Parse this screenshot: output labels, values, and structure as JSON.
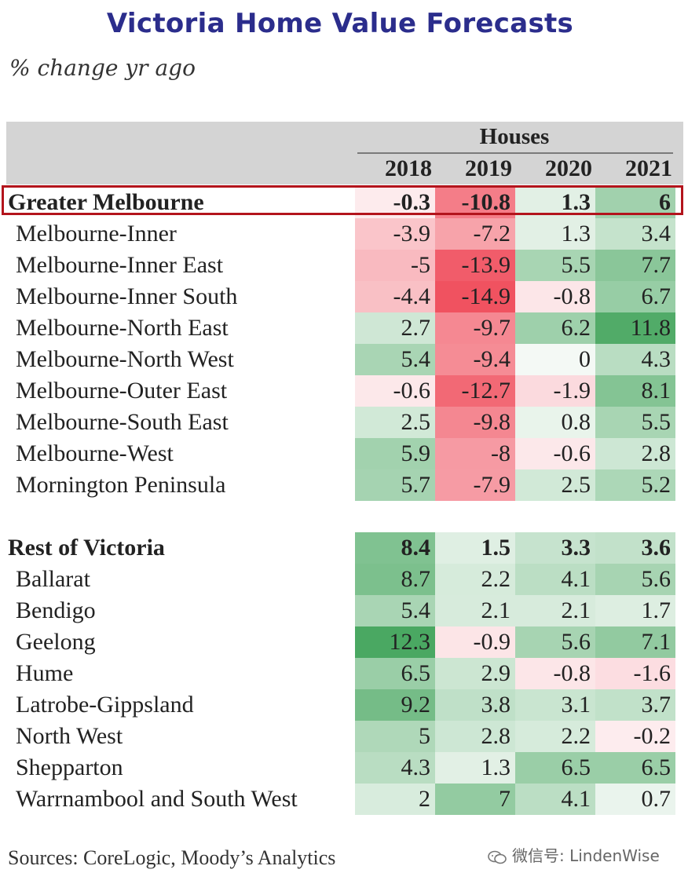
{
  "title": "Victoria Home Value Forecasts",
  "subtitle": "% change yr ago",
  "source": "Sources: CoreLogic, Moody’s Analytics",
  "watermark": "微信号: LindenWise",
  "colors": {
    "title": "#2b2d8c",
    "highlight_border": "#b3141c",
    "positive": "#3aa35c",
    "negative": "#ee3344"
  },
  "chart_data": {
    "type": "table",
    "title": "Victoria Home Value Forecasts",
    "subtitle": "% change yr ago",
    "column_group": "Houses",
    "columns": [
      "2018",
      "2019",
      "2020",
      "2021"
    ],
    "groups": [
      {
        "name": "Greater Melbourne",
        "values": [
          "-0.3",
          "-10.8",
          "1.3",
          "6"
        ],
        "rows": [
          {
            "name": "Melbourne-Inner",
            "values": [
              "-3.9",
              "-7.2",
              "1.3",
              "3.4"
            ]
          },
          {
            "name": "Melbourne-Inner East",
            "values": [
              "-5",
              "-13.9",
              "5.5",
              "7.7"
            ]
          },
          {
            "name": "Melbourne-Inner South",
            "values": [
              "-4.4",
              "-14.9",
              "-0.8",
              "6.7"
            ]
          },
          {
            "name": "Melbourne-North East",
            "values": [
              "2.7",
              "-9.7",
              "6.2",
              "11.8"
            ]
          },
          {
            "name": "Melbourne-North West",
            "values": [
              "5.4",
              "-9.4",
              "0",
              "4.3"
            ]
          },
          {
            "name": "Melbourne-Outer East",
            "values": [
              "-0.6",
              "-12.7",
              "-1.9",
              "8.1"
            ]
          },
          {
            "name": "Melbourne-South East",
            "values": [
              "2.5",
              "-9.8",
              "0.8",
              "5.5"
            ]
          },
          {
            "name": "Melbourne-West",
            "values": [
              "5.9",
              "-8",
              "-0.6",
              "2.8"
            ]
          },
          {
            "name": "Mornington Peninsula",
            "values": [
              "5.7",
              "-7.9",
              "2.5",
              "5.2"
            ]
          }
        ]
      },
      {
        "name": "Rest of Victoria",
        "values": [
          "8.4",
          "1.5",
          "3.3",
          "3.6"
        ],
        "rows": [
          {
            "name": "Ballarat",
            "values": [
              "8.7",
              "2.2",
              "4.1",
              "5.6"
            ]
          },
          {
            "name": "Bendigo",
            "values": [
              "5.4",
              "2.1",
              "2.1",
              "1.7"
            ]
          },
          {
            "name": "Geelong",
            "values": [
              "12.3",
              "-0.9",
              "5.6",
              "7.1"
            ]
          },
          {
            "name": "Hume",
            "values": [
              "6.5",
              "2.9",
              "-0.8",
              "-1.6"
            ]
          },
          {
            "name": "Latrobe-Gippsland",
            "values": [
              "9.2",
              "3.8",
              "3.1",
              "3.7"
            ]
          },
          {
            "name": "North West",
            "values": [
              "5",
              "2.8",
              "2.2",
              "-0.2"
            ]
          },
          {
            "name": "Shepparton",
            "values": [
              "4.3",
              "1.3",
              "6.5",
              "6.5"
            ]
          },
          {
            "name": "Warrnambool and South West",
            "values": [
              "2",
              "7",
              "4.1",
              "0.7"
            ]
          }
        ]
      }
    ]
  }
}
